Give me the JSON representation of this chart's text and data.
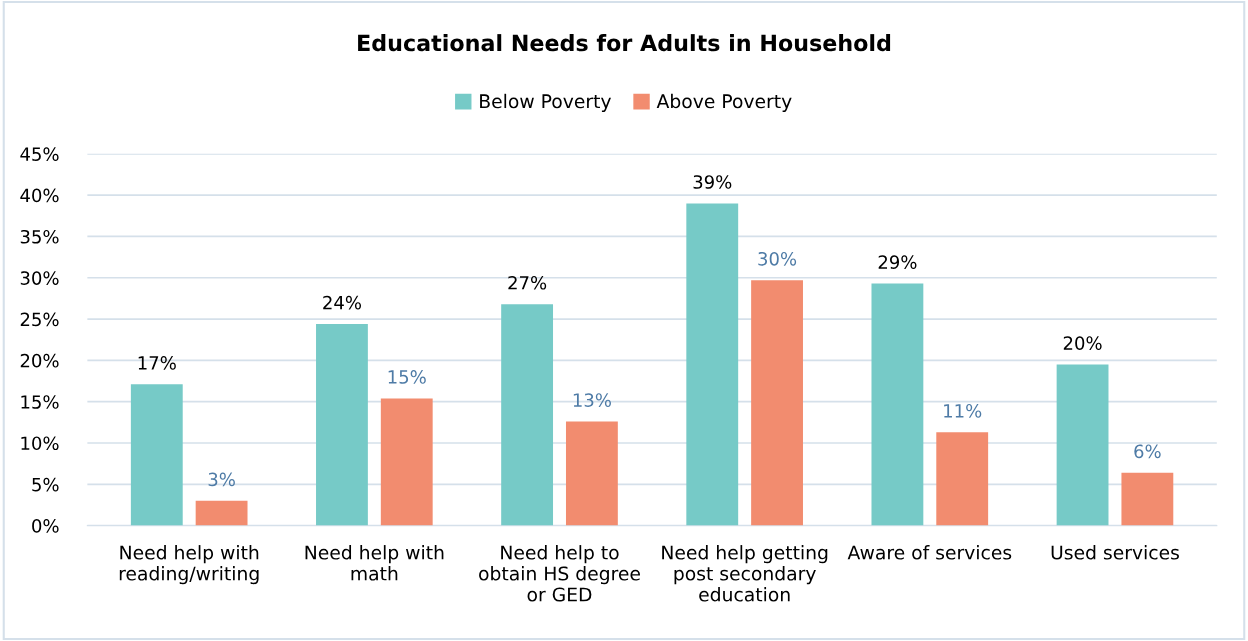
{
  "chart_data": {
    "type": "bar",
    "title": "Educational Needs for Adults in Household",
    "categories": [
      "Need help with\nreading/writing",
      "Need help with\nmath",
      "Need help to\nobtain HS degree\nor GED",
      "Need help getting\npost secondary\neducation",
      "Aware of services",
      "Used services"
    ],
    "series": [
      {
        "name": "Below Poverty",
        "color": "#76cac7",
        "values": [
          17.1,
          24.4,
          26.8,
          39.0,
          29.3,
          19.5
        ],
        "value_labels": [
          "17%",
          "24%",
          "27%",
          "39%",
          "29%",
          "20%"
        ]
      },
      {
        "name": "Above Poverty",
        "color": "#f28c6f",
        "values": [
          3.0,
          15.4,
          12.6,
          29.7,
          11.3,
          6.4
        ],
        "value_labels": [
          "3%",
          "15%",
          "13%",
          "30%",
          "11%",
          "6%"
        ]
      }
    ],
    "ylim": [
      0,
      45
    ],
    "yticks": [
      {
        "value": 0,
        "label": "0%"
      },
      {
        "value": 5,
        "label": "5%"
      },
      {
        "value": 10,
        "label": "10%"
      },
      {
        "value": 15,
        "label": "15%"
      },
      {
        "value": 20,
        "label": "20%"
      },
      {
        "value": 25,
        "label": "25%"
      },
      {
        "value": 30,
        "label": "30%"
      },
      {
        "value": 35,
        "label": "35%"
      },
      {
        "value": 40,
        "label": "40%"
      },
      {
        "value": 45,
        "label": "45%"
      }
    ],
    "grid": "y",
    "legend": "top"
  }
}
